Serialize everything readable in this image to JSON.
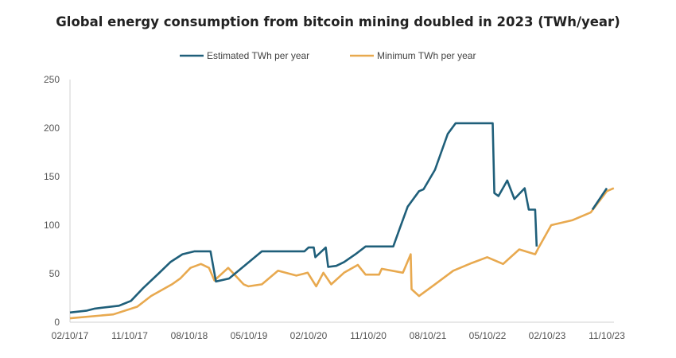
{
  "chart_data": {
    "type": "line",
    "title": "Global energy consumption from bitcoin mining doubled in 2023 (TWh/year)",
    "xlabel": "",
    "ylabel": "",
    "ylim": [
      0,
      250
    ],
    "yticks": [
      "0",
      "50",
      "100",
      "150",
      "200",
      "250"
    ],
    "xticks": [
      "02/10/17",
      "11/10/17",
      "08/10/18",
      "05/10/19",
      "02/10/20",
      "11/10/20",
      "08/10/21",
      "05/10/22",
      "02/10/23",
      "11/10/23"
    ],
    "legend_position": "top",
    "grid": false,
    "series": [
      {
        "name": "Estimated TWh per year",
        "color": "#1f5f7a",
        "points": [
          [
            "2017-02-10",
            10
          ],
          [
            "2017-04-29",
            12
          ],
          [
            "2017-06-04",
            14
          ],
          [
            "2017-09-23",
            17
          ],
          [
            "2017-11-17",
            22
          ],
          [
            "2018-01-11",
            35
          ],
          [
            "2018-03-23",
            50
          ],
          [
            "2018-05-17",
            62
          ],
          [
            "2018-07-11",
            70
          ],
          [
            "2018-09-05",
            73
          ],
          [
            "2018-11-17",
            73
          ],
          [
            "2018-12-12",
            42
          ],
          [
            "2019-02-10",
            45
          ],
          [
            "2019-07-11",
            73
          ],
          [
            "2020-01-22",
            73
          ],
          [
            "2020-02-10",
            77
          ],
          [
            "2020-03-05",
            77
          ],
          [
            "2020-03-12",
            67
          ],
          [
            "2020-04-29",
            77
          ],
          [
            "2020-05-10",
            57
          ],
          [
            "2020-06-16",
            58
          ],
          [
            "2020-07-22",
            62
          ],
          [
            "2020-09-12",
            70
          ],
          [
            "2020-10-29",
            78
          ],
          [
            "2021-03-05",
            78
          ],
          [
            "2021-04-04",
            97
          ],
          [
            "2021-05-10",
            119
          ],
          [
            "2021-07-01",
            135
          ],
          [
            "2021-07-22",
            137
          ],
          [
            "2021-09-12",
            157
          ],
          [
            "2021-11-10",
            194
          ],
          [
            "2021-12-16",
            205
          ],
          [
            "2022-06-04",
            205
          ],
          [
            "2022-06-12",
            133
          ],
          [
            "2022-07-01",
            130
          ],
          [
            "2022-08-10",
            146
          ],
          [
            "2022-09-12",
            127
          ],
          [
            "2022-10-29",
            138
          ],
          [
            "2022-11-17",
            116
          ],
          [
            "2022-12-16",
            116
          ],
          [
            "2022-12-23",
            78
          ],
          null,
          [
            "2023-09-05",
            116
          ],
          [
            "2023-11-10",
            138
          ]
        ]
      },
      {
        "name": "Minimum TWh per year",
        "color": "#e8a94f",
        "points": [
          [
            "2017-02-10",
            4
          ],
          [
            "2017-08-28",
            8
          ],
          [
            "2017-12-16",
            16
          ],
          [
            "2018-02-17",
            27
          ],
          [
            "2018-05-24",
            39
          ],
          [
            "2018-07-01",
            45
          ],
          [
            "2018-08-17",
            56
          ],
          [
            "2018-10-04",
            60
          ],
          [
            "2018-11-10",
            56
          ],
          [
            "2018-12-05",
            43
          ],
          [
            "2019-02-06",
            56
          ],
          [
            "2019-04-18",
            39
          ],
          [
            "2019-05-10",
            37
          ],
          [
            "2019-07-11",
            39
          ],
          [
            "2019-09-23",
            53
          ],
          [
            "2019-12-16",
            48
          ],
          [
            "2020-02-06",
            51
          ],
          [
            "2020-03-16",
            37
          ],
          [
            "2020-04-18",
            51
          ],
          [
            "2020-05-24",
            39
          ],
          [
            "2020-07-22",
            51
          ],
          [
            "2020-09-23",
            59
          ],
          [
            "2020-10-29",
            49
          ],
          [
            "2020-12-30",
            49
          ],
          [
            "2021-01-11",
            55
          ],
          [
            "2021-04-18",
            51
          ],
          [
            "2021-05-24",
            70
          ],
          [
            "2021-05-28",
            34
          ],
          [
            "2021-07-01",
            27
          ],
          [
            "2021-09-12",
            39
          ],
          [
            "2021-12-05",
            53
          ],
          [
            "2022-02-28",
            61
          ],
          [
            "2022-05-10",
            67
          ],
          [
            "2022-07-22",
            60
          ],
          [
            "2022-10-04",
            75
          ],
          [
            "2022-12-16",
            70
          ],
          [
            "2022-12-30",
            76
          ],
          [
            "2023-02-28",
            100
          ],
          [
            "2023-06-04",
            105
          ],
          [
            "2023-08-28",
            113
          ],
          [
            "2023-11-10",
            135
          ],
          [
            "2023-12-12",
            138
          ]
        ]
      }
    ]
  }
}
